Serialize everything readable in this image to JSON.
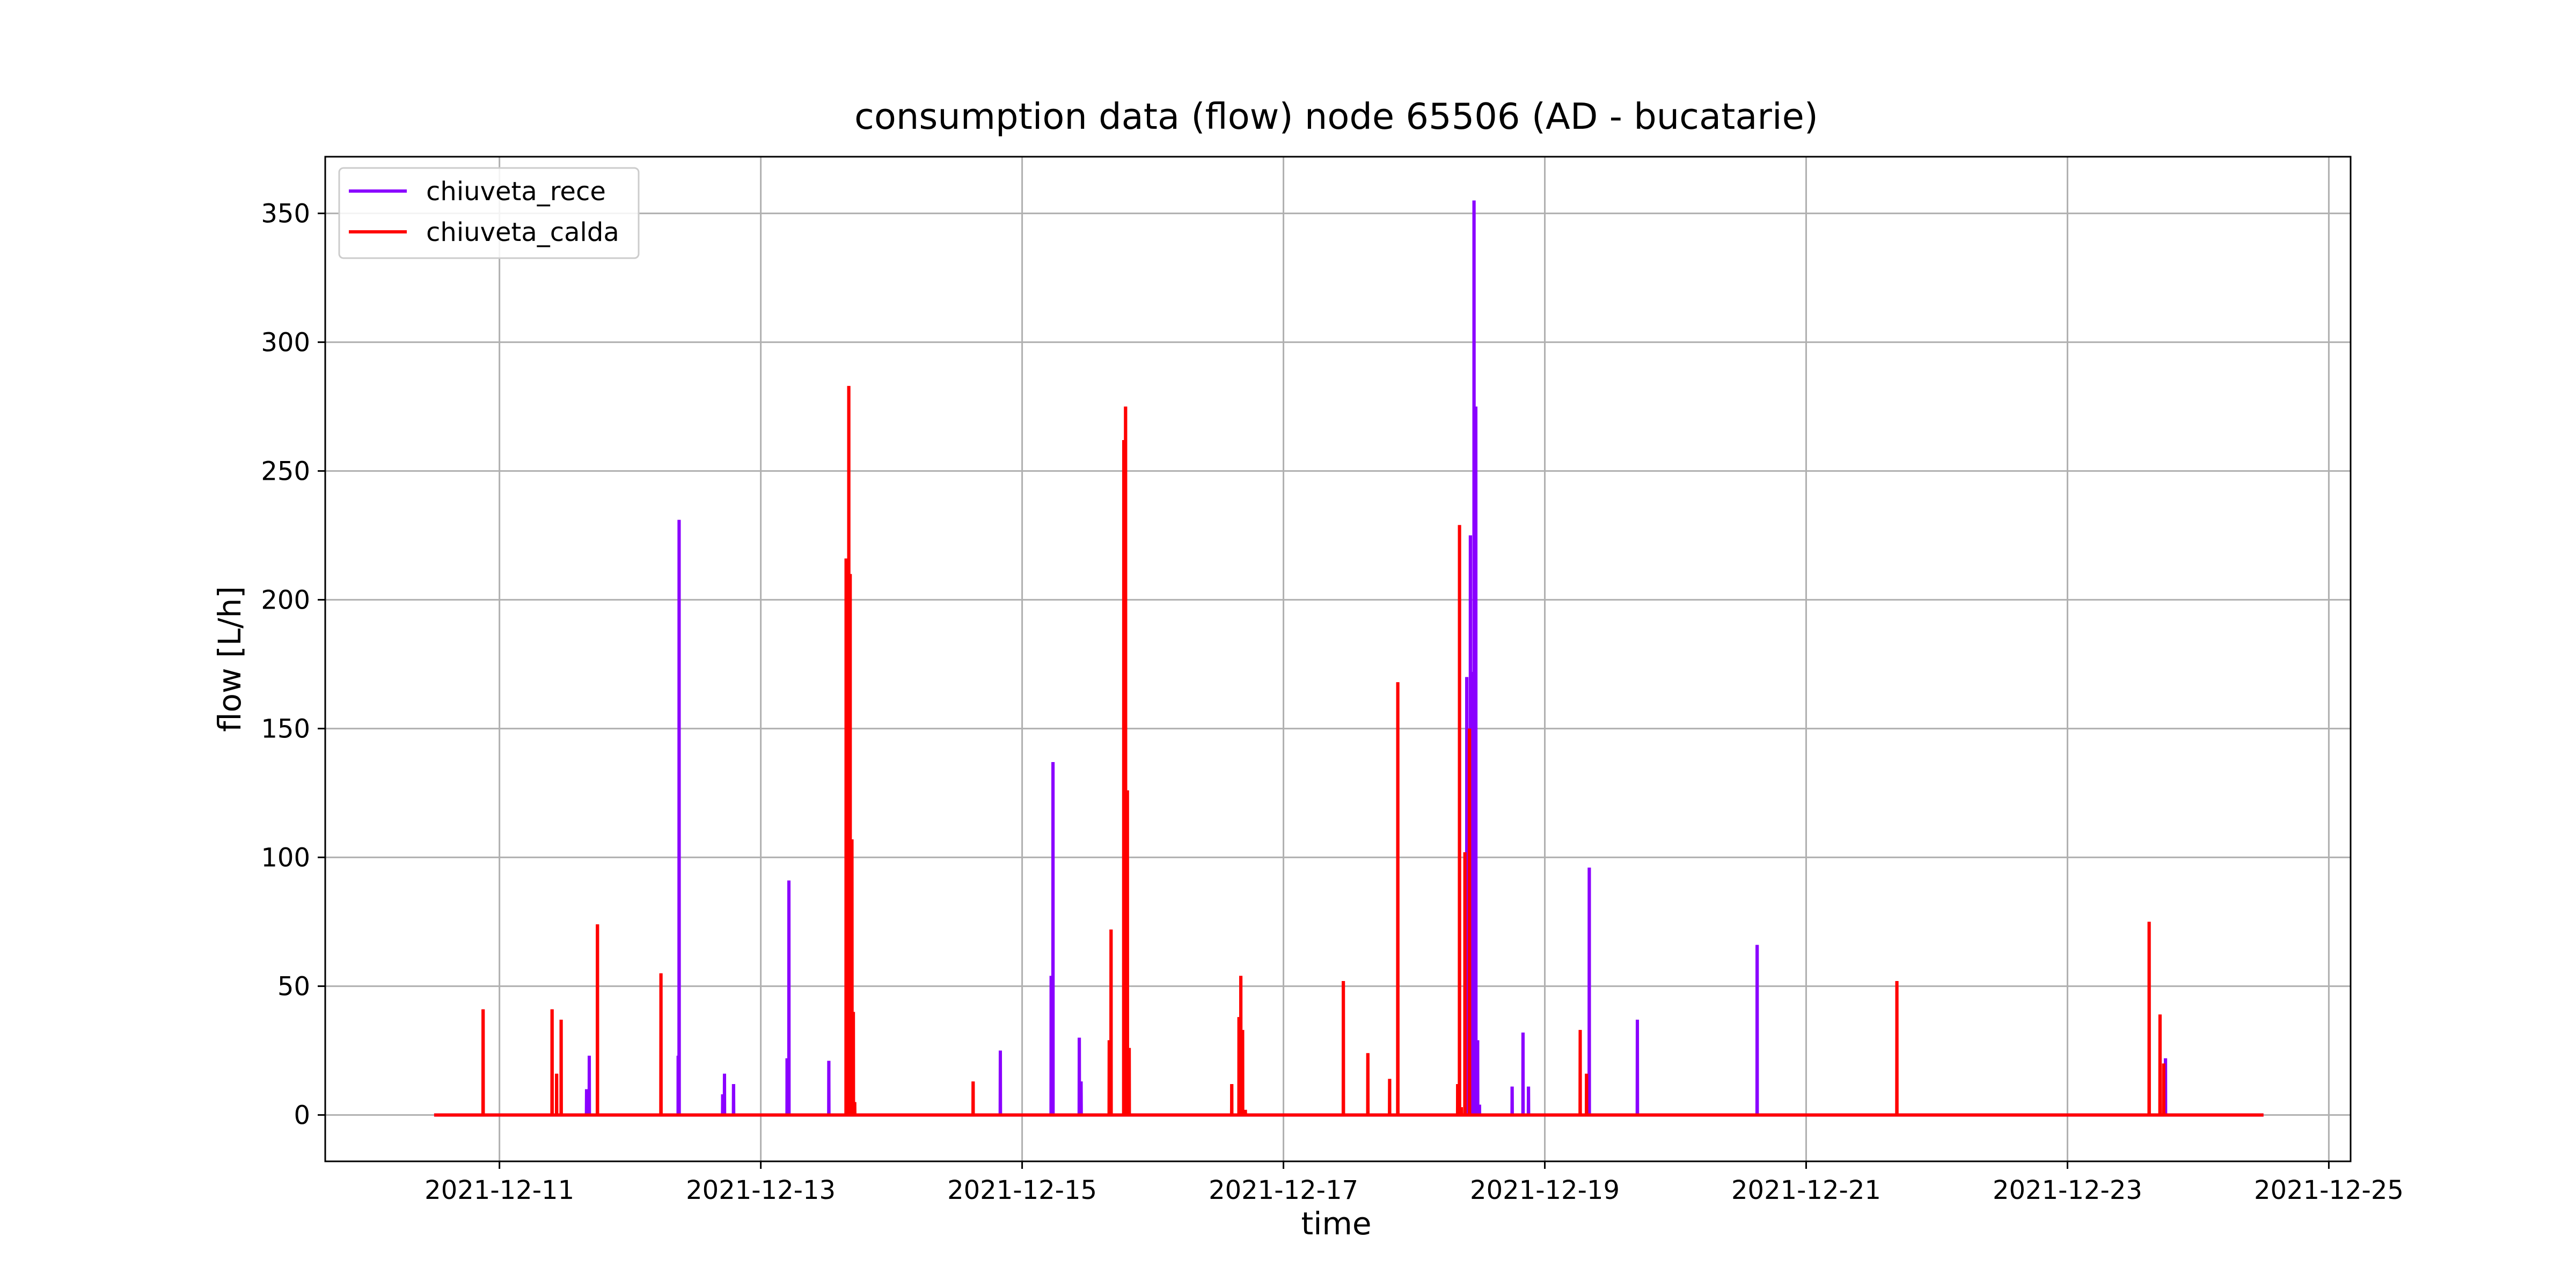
{
  "chart_data": {
    "type": "line",
    "title": "consumption data (flow) node 65506 (AD - bucatarie)",
    "xlabel": "time",
    "ylabel": "flow [L/h]",
    "x_axis_type": "date",
    "xlim": [
      "2021-12-09T16:00",
      "2021-12-25T04:00"
    ],
    "ylim": [
      -18,
      372
    ],
    "x_ticks": [
      "2021-12-11",
      "2021-12-13",
      "2021-12-15",
      "2021-12-17",
      "2021-12-19",
      "2021-12-21",
      "2021-12-23",
      "2021-12-25"
    ],
    "y_ticks": [
      0,
      50,
      100,
      150,
      200,
      250,
      300,
      350
    ],
    "grid": true,
    "legend_position": "top-left",
    "x_range": [
      "2021-12-10T12:00",
      "2021-12-24T12:00"
    ],
    "series": [
      {
        "name": "chiuveta_rece",
        "color": "#8a00ff",
        "spikes": [
          {
            "t": "2021-12-11T16:00",
            "v": 10
          },
          {
            "t": "2021-12-11T16:30",
            "v": 23
          },
          {
            "t": "2021-12-12T08:50",
            "v": 23
          },
          {
            "t": "2021-12-12T09:00",
            "v": 231
          },
          {
            "t": "2021-12-12T17:00",
            "v": 8
          },
          {
            "t": "2021-12-12T17:20",
            "v": 16
          },
          {
            "t": "2021-12-12T19:00",
            "v": 12
          },
          {
            "t": "2021-12-13T04:50",
            "v": 22
          },
          {
            "t": "2021-12-13T05:10",
            "v": 91
          },
          {
            "t": "2021-12-13T12:30",
            "v": 21
          },
          {
            "t": "2021-12-14T20:00",
            "v": 25
          },
          {
            "t": "2021-12-15T05:20",
            "v": 54
          },
          {
            "t": "2021-12-15T05:40",
            "v": 137
          },
          {
            "t": "2021-12-15T10:30",
            "v": 30
          },
          {
            "t": "2021-12-15T10:50",
            "v": 13
          },
          {
            "t": "2021-12-18T09:40",
            "v": 170
          },
          {
            "t": "2021-12-18T10:00",
            "v": 100
          },
          {
            "t": "2021-12-18T10:20",
            "v": 225
          },
          {
            "t": "2021-12-18T10:40",
            "v": 172
          },
          {
            "t": "2021-12-18T11:00",
            "v": 355
          },
          {
            "t": "2021-12-18T11:20",
            "v": 275
          },
          {
            "t": "2021-12-18T11:40",
            "v": 29
          },
          {
            "t": "2021-12-18T12:00",
            "v": 4
          },
          {
            "t": "2021-12-18T18:00",
            "v": 11
          },
          {
            "t": "2021-12-18T20:00",
            "v": 32
          },
          {
            "t": "2021-12-18T21:00",
            "v": 11
          },
          {
            "t": "2021-12-19T08:10",
            "v": 96
          },
          {
            "t": "2021-12-19T17:00",
            "v": 37
          },
          {
            "t": "2021-12-20T15:00",
            "v": 66
          },
          {
            "t": "2021-12-23T18:00",
            "v": 22
          }
        ]
      },
      {
        "name": "chiuveta_calda",
        "color": "#ff0000",
        "spikes": [
          {
            "t": "2021-12-10T21:00",
            "v": 41
          },
          {
            "t": "2021-12-11T09:40",
            "v": 41
          },
          {
            "t": "2021-12-11T10:30",
            "v": 16
          },
          {
            "t": "2021-12-11T11:20",
            "v": 37
          },
          {
            "t": "2021-12-11T18:00",
            "v": 74
          },
          {
            "t": "2021-12-12T05:40",
            "v": 55
          },
          {
            "t": "2021-12-13T15:40",
            "v": 216
          },
          {
            "t": "2021-12-13T15:55",
            "v": 150
          },
          {
            "t": "2021-12-13T16:10",
            "v": 283
          },
          {
            "t": "2021-12-13T16:25",
            "v": 210
          },
          {
            "t": "2021-12-13T16:45",
            "v": 107
          },
          {
            "t": "2021-12-13T17:00",
            "v": 40
          },
          {
            "t": "2021-12-13T17:15",
            "v": 5
          },
          {
            "t": "2021-12-14T15:00",
            "v": 13
          },
          {
            "t": "2021-12-15T16:00",
            "v": 29
          },
          {
            "t": "2021-12-15T16:20",
            "v": 72
          },
          {
            "t": "2021-12-15T18:40",
            "v": 262
          },
          {
            "t": "2021-12-15T19:00",
            "v": 275
          },
          {
            "t": "2021-12-15T19:20",
            "v": 126
          },
          {
            "t": "2021-12-15T19:40",
            "v": 26
          },
          {
            "t": "2021-12-16T14:30",
            "v": 12
          },
          {
            "t": "2021-12-16T15:50",
            "v": 38
          },
          {
            "t": "2021-12-16T16:10",
            "v": 54
          },
          {
            "t": "2021-12-16T16:30",
            "v": 33
          },
          {
            "t": "2021-12-16T17:00",
            "v": 2
          },
          {
            "t": "2021-12-17T11:00",
            "v": 52
          },
          {
            "t": "2021-12-17T15:30",
            "v": 24
          },
          {
            "t": "2021-12-17T19:30",
            "v": 14
          },
          {
            "t": "2021-12-17T21:00",
            "v": 168
          },
          {
            "t": "2021-12-18T08:00",
            "v": 12
          },
          {
            "t": "2021-12-18T08:20",
            "v": 229
          },
          {
            "t": "2021-12-18T08:40",
            "v": 3
          },
          {
            "t": "2021-12-18T09:20",
            "v": 102
          },
          {
            "t": "2021-12-18T10:10",
            "v": 150
          },
          {
            "t": "2021-12-19T06:30",
            "v": 33
          },
          {
            "t": "2021-12-19T07:40",
            "v": 16
          },
          {
            "t": "2021-12-21T16:40",
            "v": 52
          },
          {
            "t": "2021-12-23T15:00",
            "v": 75
          },
          {
            "t": "2021-12-23T17:00",
            "v": 39
          },
          {
            "t": "2021-12-23T17:40",
            "v": 20
          }
        ]
      }
    ]
  }
}
